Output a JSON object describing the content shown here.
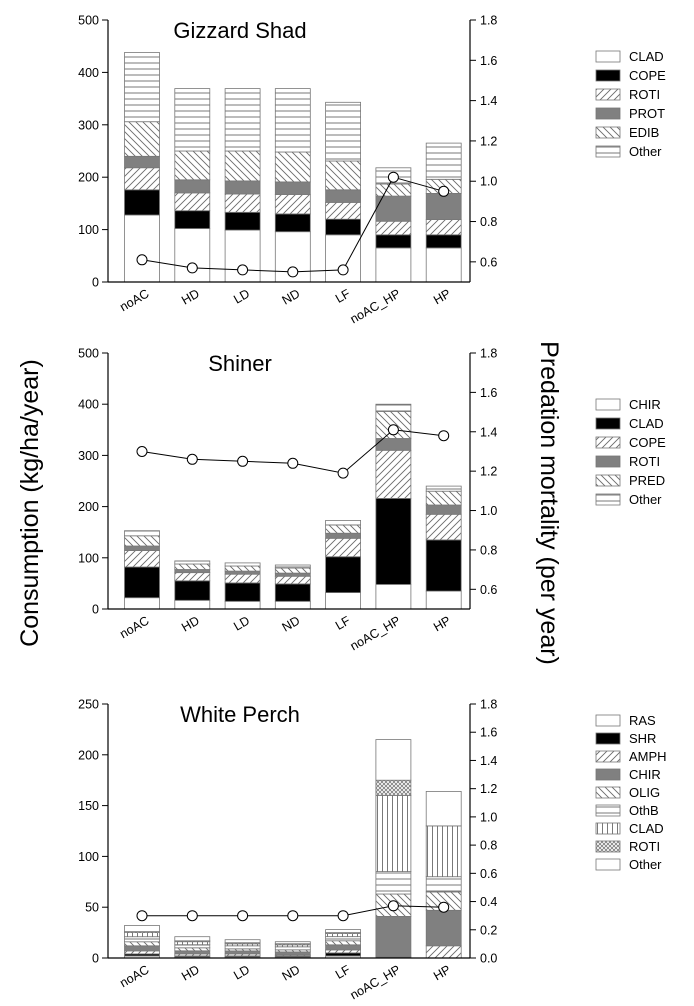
{
  "figure": {
    "left_axis_label": "Consumption (kg/ha/year)",
    "right_axis_label": "Predation mortality (per year)"
  },
  "chart_data": [
    {
      "type": "bar",
      "stacked": true,
      "title": "Gizzard Shad",
      "ylabel": "Consumption (kg/ha/year)",
      "y2label": "Predation mortality (per year)",
      "categories": [
        "noAC",
        "HD",
        "LD",
        "ND",
        "LF",
        "noAC_HP",
        "HP"
      ],
      "ylim": [
        0,
        500
      ],
      "yticks": [
        0,
        100,
        200,
        300,
        400,
        500
      ],
      "y2lim": [
        0.5,
        1.8
      ],
      "y2ticks": [
        0.6,
        0.8,
        1.0,
        1.2,
        1.4,
        1.6,
        1.8
      ],
      "legend_position": "right",
      "series": [
        {
          "name": "CLAD",
          "pattern": "blank",
          "values": [
            128,
            102,
            99,
            96,
            90,
            65,
            65
          ]
        },
        {
          "name": "COPE",
          "pattern": "black",
          "values": [
            48,
            34,
            34,
            34,
            30,
            25,
            25
          ]
        },
        {
          "name": "ROTI",
          "pattern": "diag-up",
          "values": [
            42,
            34,
            35,
            37,
            32,
            26,
            29
          ]
        },
        {
          "name": "PROT",
          "pattern": "gray",
          "values": [
            22,
            25,
            25,
            24,
            24,
            48,
            50
          ]
        },
        {
          "name": "EDIB",
          "pattern": "diag-down",
          "values": [
            66,
            55,
            57,
            57,
            55,
            23,
            27
          ]
        },
        {
          "name": "Other",
          "pattern": "horiz",
          "values": [
            132,
            119,
            119,
            121,
            112,
            31,
            69
          ]
        }
      ],
      "line": {
        "name": "Predation mortality",
        "axis": "right",
        "values": [
          0.61,
          0.57,
          0.56,
          0.55,
          0.56,
          1.02,
          0.95
        ]
      }
    },
    {
      "type": "bar",
      "stacked": true,
      "title": "Shiner",
      "ylabel": "Consumption (kg/ha/year)",
      "y2label": "Predation mortality (per year)",
      "categories": [
        "noAC",
        "HD",
        "LD",
        "ND",
        "LF",
        "noAC_HP",
        "HP"
      ],
      "ylim": [
        0,
        500
      ],
      "yticks": [
        0,
        100,
        200,
        300,
        400,
        500
      ],
      "y2lim": [
        0.5,
        1.8
      ],
      "y2ticks": [
        0.6,
        0.8,
        1.0,
        1.2,
        1.4,
        1.6,
        1.8
      ],
      "legend_position": "right",
      "series": [
        {
          "name": "CHIR",
          "pattern": "blank",
          "values": [
            22,
            17,
            15,
            15,
            32,
            48,
            35
          ]
        },
        {
          "name": "CLAD",
          "pattern": "black",
          "values": [
            60,
            38,
            36,
            34,
            70,
            168,
            100
          ]
        },
        {
          "name": "COPE",
          "pattern": "diag-up",
          "values": [
            32,
            16,
            17,
            15,
            36,
            94,
            50
          ]
        },
        {
          "name": "ROTI",
          "pattern": "gray",
          "values": [
            9,
            6,
            6,
            6,
            10,
            23,
            18
          ]
        },
        {
          "name": "PRED",
          "pattern": "diag-down",
          "values": [
            20,
            11,
            10,
            10,
            16,
            53,
            27
          ]
        },
        {
          "name": "Other",
          "pattern": "horiz",
          "values": [
            10,
            6,
            6,
            6,
            9,
            14,
            10
          ]
        }
      ],
      "line": {
        "name": "Predation mortality",
        "axis": "right",
        "values": [
          1.3,
          1.26,
          1.25,
          1.24,
          1.19,
          1.41,
          1.38
        ]
      }
    },
    {
      "type": "bar",
      "stacked": true,
      "title": "White Perch",
      "ylabel": "Consumption (kg/ha/year)",
      "y2label": "Predation mortality (per year)",
      "categories": [
        "noAC",
        "HD",
        "LD",
        "ND",
        "LF",
        "noAC_HP",
        "HP"
      ],
      "ylim": [
        0,
        250
      ],
      "yticks": [
        0,
        50,
        100,
        150,
        200,
        250
      ],
      "y2lim": [
        0,
        1.8
      ],
      "y2ticks": [
        0.0,
        0.2,
        0.4,
        0.6,
        0.8,
        1.0,
        1.2,
        1.4,
        1.6,
        1.8
      ],
      "legend_position": "right",
      "series": [
        {
          "name": "RAS",
          "pattern": "blank",
          "values": [
            2,
            1,
            1,
            1,
            2,
            0,
            0
          ]
        },
        {
          "name": "SHR",
          "pattern": "black",
          "values": [
            2,
            1,
            1,
            1,
            3,
            1,
            0
          ]
        },
        {
          "name": "AMPH",
          "pattern": "diag-up",
          "values": [
            3,
            2,
            2,
            1,
            3,
            0,
            12
          ]
        },
        {
          "name": "CHIR",
          "pattern": "gray",
          "values": [
            5,
            3,
            3,
            3,
            5,
            40,
            35
          ]
        },
        {
          "name": "OLIG",
          "pattern": "diag-down",
          "values": [
            4,
            3,
            2,
            2,
            4,
            22,
            18
          ]
        },
        {
          "name": "OthB",
          "pattern": "horiz",
          "values": [
            5,
            3,
            3,
            3,
            4,
            22,
            15
          ]
        },
        {
          "name": "CLAD",
          "pattern": "vert",
          "values": [
            4,
            3,
            2,
            2,
            3,
            75,
            50
          ]
        },
        {
          "name": "ROTI",
          "pattern": "dots",
          "values": [
            1,
            1,
            1,
            1,
            1,
            15,
            0
          ]
        },
        {
          "name": "Other",
          "pattern": "blank",
          "values": [
            6,
            4,
            3,
            2,
            3,
            40,
            34
          ]
        }
      ],
      "line": {
        "name": "Predation mortality",
        "axis": "right",
        "values": [
          0.3,
          0.3,
          0.3,
          0.3,
          0.3,
          0.37,
          0.36
        ]
      }
    }
  ]
}
